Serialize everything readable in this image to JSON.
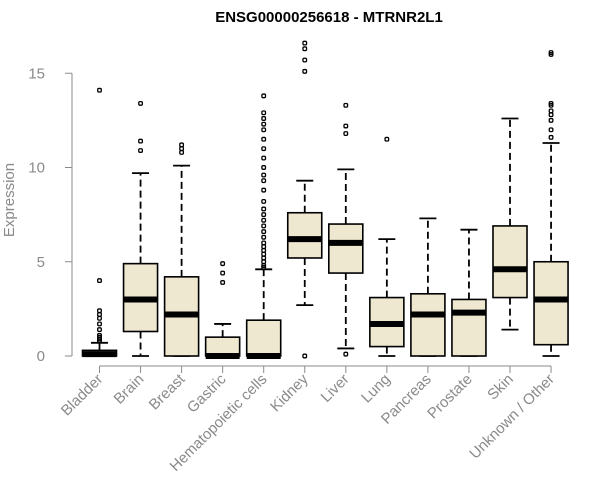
{
  "chart_data": {
    "type": "boxplot",
    "title": "ENSG00000256618 - MTRNR2L1",
    "xlabel": "",
    "ylabel": "Expression",
    "ylim": [
      0,
      17
    ],
    "yticks": [
      0,
      5,
      10,
      15
    ],
    "colors": {
      "box_fill": "#efe8d0",
      "stroke": "#000000",
      "axis": "#8a8a8a"
    },
    "categories": [
      "Bladder",
      "Brain",
      "Breast",
      "Gastric",
      "Hematopoietic cells",
      "Kidney",
      "Liver",
      "Lung",
      "Pancreas",
      "Prostate",
      "Skin",
      "Unknown / Other"
    ],
    "boxes": [
      {
        "name": "Bladder",
        "whisker_low": 0,
        "q1": 0,
        "median": 0.1,
        "q3": 0.3,
        "whisker_high": 0.7,
        "outliers": [
          14.1,
          4.0,
          2.4,
          2.2,
          2.0,
          1.7,
          1.4,
          1.1,
          1.0,
          0.9,
          0.8,
          0.8
        ]
      },
      {
        "name": "Brain",
        "whisker_low": 0,
        "q1": 1.3,
        "median": 3.0,
        "q3": 4.9,
        "whisker_high": 9.7,
        "outliers": [
          13.4,
          11.4,
          10.9
        ]
      },
      {
        "name": "Breast",
        "whisker_low": 0,
        "q1": 0,
        "median": 2.2,
        "q3": 4.2,
        "whisker_high": 10.1,
        "outliers": [
          11.2,
          11.0,
          10.8
        ]
      },
      {
        "name": "Gastric",
        "whisker_low": 0,
        "q1": 0,
        "median": 0,
        "q3": 1.0,
        "whisker_high": 1.7,
        "outliers": [
          4.9,
          4.4,
          3.9
        ]
      },
      {
        "name": "Hematopoietic cells",
        "whisker_low": 0,
        "q1": 0,
        "median": 0,
        "q3": 1.9,
        "whisker_high": 4.6,
        "outliers": [
          13.8,
          12.9,
          12.6,
          12.3,
          12.0,
          11.5,
          11.0,
          10.5,
          10.0,
          9.6,
          9.3,
          8.8,
          8.2,
          7.8,
          7.5,
          7.2,
          6.9,
          6.6,
          6.3,
          6.0,
          5.8,
          5.6,
          5.4,
          5.2,
          5.0,
          4.8,
          4.7
        ]
      },
      {
        "name": "Kidney",
        "whisker_low": 2.7,
        "q1": 5.2,
        "median": 6.2,
        "q3": 7.6,
        "whisker_high": 9.3,
        "outliers": [
          16.6,
          16.3,
          15.7,
          15.1,
          0
        ]
      },
      {
        "name": "Liver",
        "whisker_low": 0.4,
        "q1": 4.4,
        "median": 6.0,
        "q3": 7.0,
        "whisker_high": 9.9,
        "outliers": [
          13.3,
          12.2,
          11.8,
          0.1
        ]
      },
      {
        "name": "Lung",
        "whisker_low": 0,
        "q1": 0.5,
        "median": 1.7,
        "q3": 3.1,
        "whisker_high": 6.2,
        "outliers": [
          11.5
        ]
      },
      {
        "name": "Pancreas",
        "whisker_low": 0,
        "q1": 0,
        "median": 2.2,
        "q3": 3.3,
        "whisker_high": 7.3,
        "outliers": []
      },
      {
        "name": "Prostate",
        "whisker_low": 0,
        "q1": 0,
        "median": 2.3,
        "q3": 3.0,
        "whisker_high": 6.7,
        "outliers": []
      },
      {
        "name": "Skin",
        "whisker_low": 1.4,
        "q1": 3.1,
        "median": 4.6,
        "q3": 6.9,
        "whisker_high": 12.6,
        "outliers": []
      },
      {
        "name": "Unknown / Other",
        "whisker_low": 0,
        "q1": 0.6,
        "median": 3.0,
        "q3": 5.0,
        "whisker_high": 11.3,
        "outliers": [
          16.1,
          16.0,
          13.4,
          13.3,
          13.0,
          12.8,
          12.5,
          12.0,
          11.6
        ]
      }
    ]
  }
}
